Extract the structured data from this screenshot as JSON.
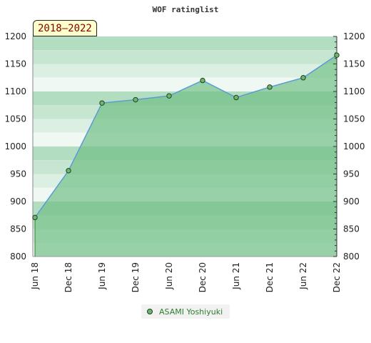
{
  "chart_data": {
    "type": "area",
    "title": "WOF ratinglist",
    "period": "2018–2022",
    "categories": [
      "Jun 18",
      "Dec 18",
      "Jun 19",
      "Dec 19",
      "Jun 20",
      "Dec 20",
      "Jun 21",
      "Dec 21",
      "Jun 22",
      "Dec 22"
    ],
    "series": [
      {
        "name": "ASAMI Yoshiyuki",
        "values": [
          871,
          956,
          1079,
          1085,
          1092,
          1120,
          1089,
          1108,
          1125,
          1166
        ]
      }
    ],
    "ylim": [
      800,
      1200
    ],
    "yticks": [
      800,
      850,
      900,
      950,
      1000,
      1050,
      1100,
      1150,
      1200
    ],
    "y_axis_both_sides": true,
    "legend_position": "bottom",
    "colors": {
      "line": "#5b9bd5",
      "area": "#8dcb9b",
      "marker": "#6fb56f",
      "marker_edge": "#1f3f1f",
      "legend_text": "#2e7d32"
    }
  }
}
